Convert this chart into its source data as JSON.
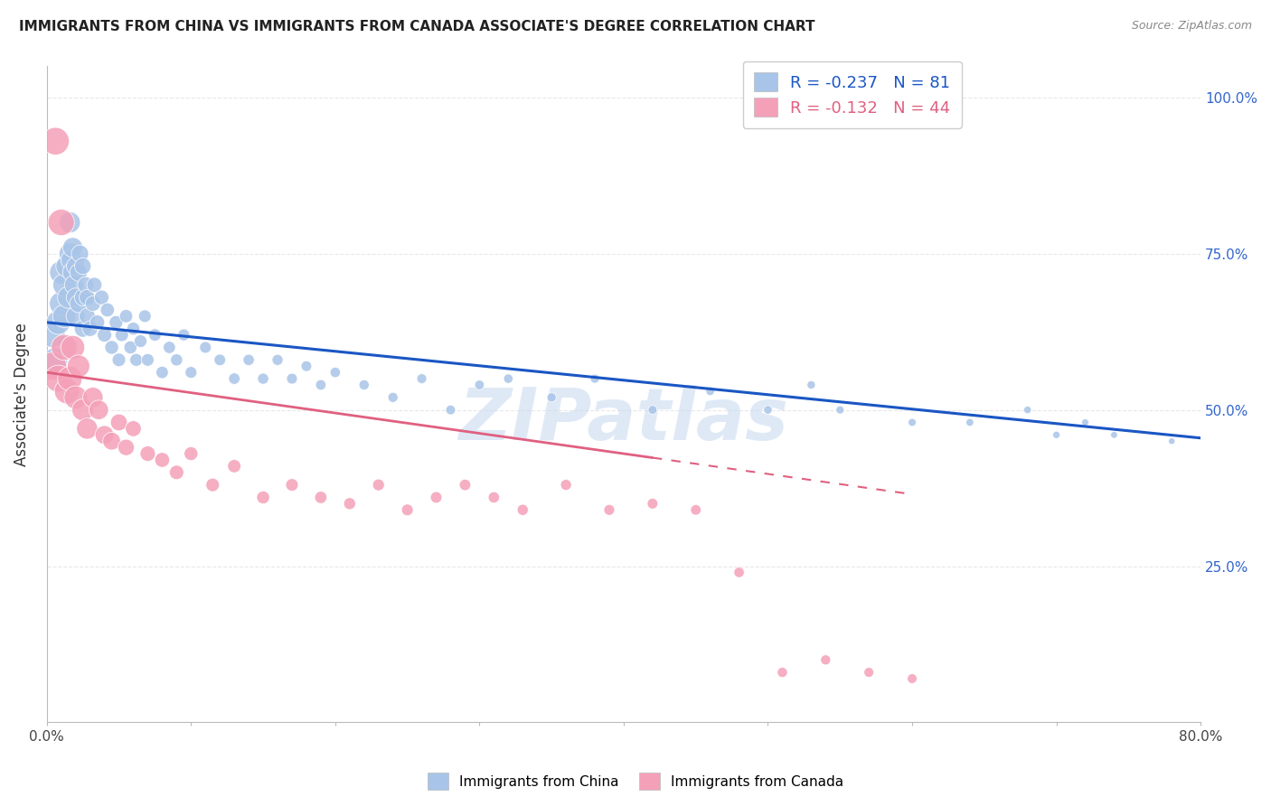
{
  "title": "IMMIGRANTS FROM CHINA VS IMMIGRANTS FROM CANADA ASSOCIATE'S DEGREE CORRELATION CHART",
  "source": "Source: ZipAtlas.com",
  "ylabel": "Associate's Degree",
  "xlim": [
    0.0,
    0.8
  ],
  "ylim": [
    0.0,
    1.05
  ],
  "ytick_labels_right": [
    "100.0%",
    "75.0%",
    "50.0%",
    "25.0%"
  ],
  "ytick_values_right": [
    1.0,
    0.75,
    0.5,
    0.25
  ],
  "china_R": -0.237,
  "china_N": 81,
  "canada_R": -0.132,
  "canada_N": 44,
  "china_color": "#a8c4e8",
  "canada_color": "#f4a0b8",
  "china_line_color": "#1a56c4",
  "canada_line_color": "#e06080",
  "background_color": "#ffffff",
  "grid_color": "#e8e8e8",
  "watermark": "ZIPatlas",
  "china_x": [
    0.004,
    0.006,
    0.008,
    0.01,
    0.01,
    0.012,
    0.012,
    0.014,
    0.015,
    0.016,
    0.016,
    0.017,
    0.018,
    0.018,
    0.019,
    0.02,
    0.02,
    0.02,
    0.022,
    0.022,
    0.023,
    0.025,
    0.025,
    0.025,
    0.027,
    0.028,
    0.028,
    0.03,
    0.032,
    0.033,
    0.035,
    0.038,
    0.04,
    0.042,
    0.045,
    0.048,
    0.05,
    0.052,
    0.055,
    0.058,
    0.06,
    0.062,
    0.065,
    0.068,
    0.07,
    0.075,
    0.08,
    0.085,
    0.09,
    0.095,
    0.1,
    0.11,
    0.12,
    0.13,
    0.14,
    0.15,
    0.16,
    0.17,
    0.18,
    0.19,
    0.2,
    0.22,
    0.24,
    0.26,
    0.28,
    0.3,
    0.32,
    0.35,
    0.38,
    0.42,
    0.46,
    0.5,
    0.53,
    0.55,
    0.6,
    0.64,
    0.68,
    0.7,
    0.72,
    0.74,
    0.78
  ],
  "china_y": [
    0.62,
    0.58,
    0.64,
    0.67,
    0.72,
    0.65,
    0.7,
    0.73,
    0.68,
    0.75,
    0.8,
    0.74,
    0.72,
    0.76,
    0.7,
    0.65,
    0.68,
    0.73,
    0.67,
    0.72,
    0.75,
    0.63,
    0.68,
    0.73,
    0.7,
    0.65,
    0.68,
    0.63,
    0.67,
    0.7,
    0.64,
    0.68,
    0.62,
    0.66,
    0.6,
    0.64,
    0.58,
    0.62,
    0.65,
    0.6,
    0.63,
    0.58,
    0.61,
    0.65,
    0.58,
    0.62,
    0.56,
    0.6,
    0.58,
    0.62,
    0.56,
    0.6,
    0.58,
    0.55,
    0.58,
    0.55,
    0.58,
    0.55,
    0.57,
    0.54,
    0.56,
    0.54,
    0.52,
    0.55,
    0.5,
    0.54,
    0.55,
    0.52,
    0.55,
    0.5,
    0.53,
    0.5,
    0.54,
    0.5,
    0.48,
    0.48,
    0.5,
    0.46,
    0.48,
    0.46,
    0.45
  ],
  "china_size": [
    400,
    380,
    360,
    350,
    340,
    330,
    320,
    310,
    300,
    290,
    280,
    270,
    260,
    250,
    240,
    230,
    220,
    210,
    200,
    195,
    190,
    185,
    180,
    175,
    170,
    165,
    160,
    155,
    150,
    145,
    140,
    135,
    130,
    125,
    120,
    118,
    115,
    112,
    110,
    108,
    106,
    104,
    102,
    100,
    100,
    98,
    96,
    94,
    92,
    90,
    88,
    86,
    84,
    82,
    80,
    78,
    76,
    74,
    72,
    70,
    68,
    66,
    64,
    62,
    60,
    58,
    56,
    54,
    52,
    50,
    48,
    46,
    44,
    42,
    40,
    38,
    36,
    34,
    32,
    30,
    28
  ],
  "canada_x": [
    0.004,
    0.006,
    0.008,
    0.01,
    0.012,
    0.014,
    0.016,
    0.018,
    0.02,
    0.022,
    0.025,
    0.028,
    0.032,
    0.036,
    0.04,
    0.045,
    0.05,
    0.055,
    0.06,
    0.07,
    0.08,
    0.09,
    0.1,
    0.115,
    0.13,
    0.15,
    0.17,
    0.19,
    0.21,
    0.23,
    0.25,
    0.27,
    0.29,
    0.31,
    0.33,
    0.36,
    0.39,
    0.42,
    0.45,
    0.48,
    0.51,
    0.54,
    0.57,
    0.6
  ],
  "canada_y": [
    0.57,
    0.93,
    0.55,
    0.8,
    0.6,
    0.53,
    0.55,
    0.6,
    0.52,
    0.57,
    0.5,
    0.47,
    0.52,
    0.5,
    0.46,
    0.45,
    0.48,
    0.44,
    0.47,
    0.43,
    0.42,
    0.4,
    0.43,
    0.38,
    0.41,
    0.36,
    0.38,
    0.36,
    0.35,
    0.38,
    0.34,
    0.36,
    0.38,
    0.36,
    0.34,
    0.38,
    0.34,
    0.35,
    0.34,
    0.24,
    0.08,
    0.1,
    0.08,
    0.07
  ],
  "canada_size": [
    500,
    480,
    460,
    440,
    420,
    400,
    380,
    360,
    340,
    320,
    300,
    280,
    260,
    240,
    220,
    200,
    180,
    170,
    160,
    150,
    140,
    130,
    120,
    115,
    110,
    105,
    100,
    95,
    90,
    88,
    86,
    84,
    82,
    80,
    78,
    76,
    74,
    72,
    70,
    68,
    66,
    64,
    62,
    60
  ],
  "china_line_x": [
    0.0,
    0.8
  ],
  "china_line_y": [
    0.64,
    0.455
  ],
  "canada_line_x": [
    0.0,
    0.6
  ],
  "canada_line_y": [
    0.56,
    0.365
  ]
}
